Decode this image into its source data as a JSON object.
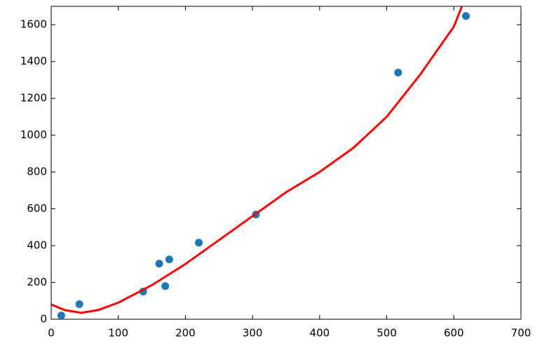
{
  "chart_data": {
    "type": "scatter",
    "series": [
      {
        "type": "scatter",
        "color": "#1f77b4",
        "x": [
          15,
          42,
          137,
          161,
          170,
          176,
          220,
          305,
          517,
          618
        ],
        "values": [
          20,
          82,
          150,
          302,
          180,
          325,
          416,
          569,
          1340,
          1647
        ]
      },
      {
        "type": "line",
        "color": "#ff0000",
        "x": [
          0,
          20,
          45,
          70,
          100,
          150,
          200,
          250,
          300,
          350,
          400,
          450,
          500,
          550,
          600,
          612
        ],
        "values": [
          80,
          50,
          35,
          50,
          90,
          185,
          300,
          430,
          560,
          690,
          800,
          930,
          1100,
          1330,
          1590,
          1700
        ]
      }
    ],
    "xlim": [
      0,
      700
    ],
    "ylim": [
      0,
      1700
    ],
    "xticks": [
      0,
      100,
      200,
      300,
      400,
      500,
      600,
      700
    ],
    "yticks": [
      0,
      200,
      400,
      600,
      800,
      1000,
      1200,
      1400,
      1600
    ]
  }
}
